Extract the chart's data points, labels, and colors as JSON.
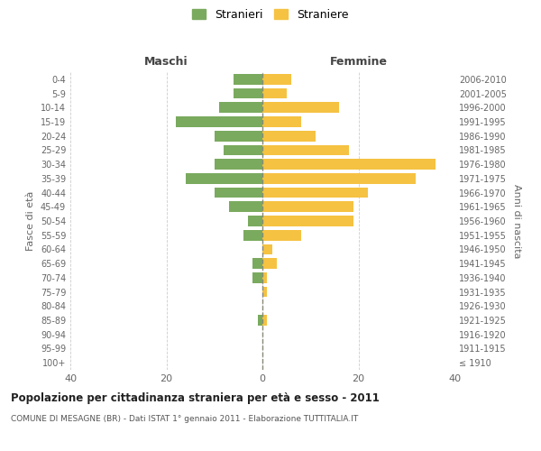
{
  "age_groups": [
    "100+",
    "95-99",
    "90-94",
    "85-89",
    "80-84",
    "75-79",
    "70-74",
    "65-69",
    "60-64",
    "55-59",
    "50-54",
    "45-49",
    "40-44",
    "35-39",
    "30-34",
    "25-29",
    "20-24",
    "15-19",
    "10-14",
    "5-9",
    "0-4"
  ],
  "birth_years": [
    "≤ 1910",
    "1911-1915",
    "1916-1920",
    "1921-1925",
    "1926-1930",
    "1931-1935",
    "1936-1940",
    "1941-1945",
    "1946-1950",
    "1951-1955",
    "1956-1960",
    "1961-1965",
    "1966-1970",
    "1971-1975",
    "1976-1980",
    "1981-1985",
    "1986-1990",
    "1991-1995",
    "1996-2000",
    "2001-2005",
    "2006-2010"
  ],
  "males": [
    0,
    0,
    0,
    1,
    0,
    0,
    2,
    2,
    0,
    4,
    3,
    7,
    10,
    16,
    10,
    8,
    10,
    18,
    9,
    6,
    6
  ],
  "females": [
    0,
    0,
    0,
    1,
    0,
    1,
    1,
    3,
    2,
    8,
    19,
    19,
    22,
    32,
    36,
    18,
    11,
    8,
    16,
    5,
    6
  ],
  "male_color": "#7aaa5e",
  "female_color": "#f5c242",
  "background_color": "#ffffff",
  "grid_color": "#cccccc",
  "title": "Popolazione per cittadinanza straniera per età e sesso - 2011",
  "subtitle": "COMUNE DI MESAGNE (BR) - Dati ISTAT 1° gennaio 2011 - Elaborazione TUTTITALIA.IT",
  "ylabel_left": "Fasce di età",
  "ylabel_right": "Anni di nascita",
  "label_maschi": "Maschi",
  "label_femmine": "Femmine",
  "legend_male": "Stranieri",
  "legend_female": "Straniere",
  "xlim": 40,
  "figsize": [
    6.0,
    5.0
  ],
  "dpi": 100
}
